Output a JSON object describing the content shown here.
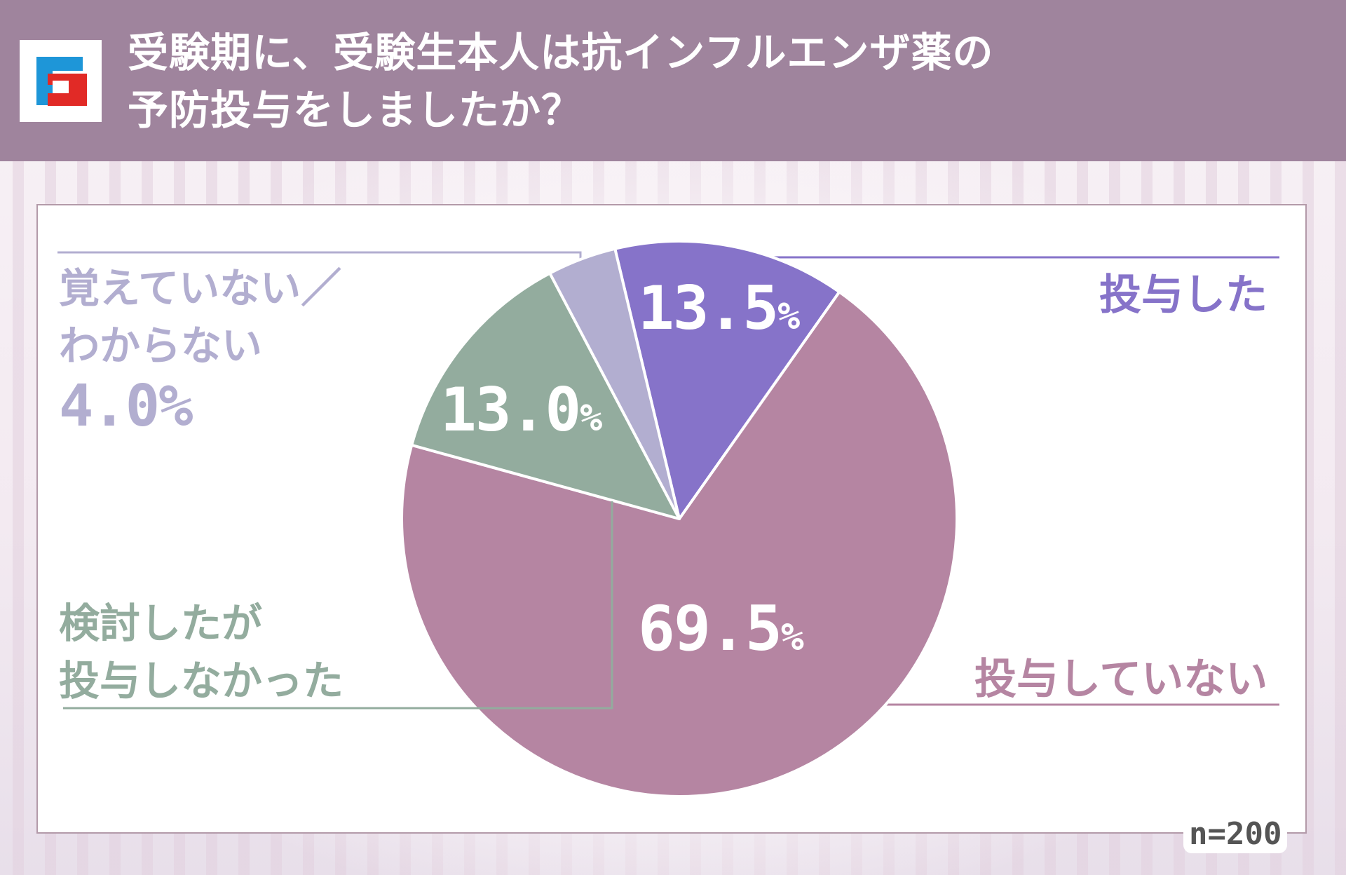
{
  "header": {
    "title_line1": "受験期に、受験生本人は抗インフルエンザ薬の",
    "title_line2": "予防投与をしましたか？",
    "background": "#9f849d"
  },
  "logo": {
    "icon": "fj-logo-icon",
    "blue": "#1e96d8",
    "red": "#e12a26"
  },
  "chart": {
    "sample_size_label": "n=200",
    "labels": {
      "administered": "投与した",
      "not_administered": "投与していない",
      "considered_line1": "検討したが",
      "considered_line2": "投与しなかった",
      "dontknow_line1": "覚えていない／",
      "dontknow_line2": "わからない",
      "dontknow_pct": "4.0%"
    },
    "pct_labels": {
      "administered_num": "13.5",
      "not_administered_num": "69.5",
      "considered_num": "13.0",
      "sign": "%"
    }
  },
  "chart_data": {
    "type": "pie",
    "title": "受験期に、受験生本人は抗インフルエンザ薬の予防投与をしましたか？",
    "categories": [
      "投与した",
      "投与していない",
      "検討したが投与しなかった",
      "覚えていない／わからない"
    ],
    "values": [
      13.5,
      69.5,
      13.0,
      4.0
    ],
    "colors": [
      "#8673c9",
      "#b585a2",
      "#93ac9e",
      "#b2aed0"
    ],
    "start_angle_deg": -13.4,
    "direction": "clockwise",
    "unit": "%",
    "n": 200,
    "legend_position": "leader-line labels around pie"
  }
}
